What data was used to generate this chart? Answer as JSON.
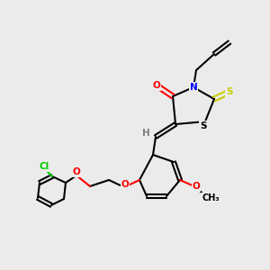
{
  "bg_color": "#ebebeb",
  "fig_width": 3.0,
  "fig_height": 3.0,
  "dpi": 100,
  "bond_color": "#000000",
  "bond_width": 1.5,
  "atom_colors": {
    "O": "#ff0000",
    "N": "#0000ff",
    "S": "#cccc00",
    "Cl": "#00cc00",
    "H": "#808080",
    "C": "#000000"
  }
}
